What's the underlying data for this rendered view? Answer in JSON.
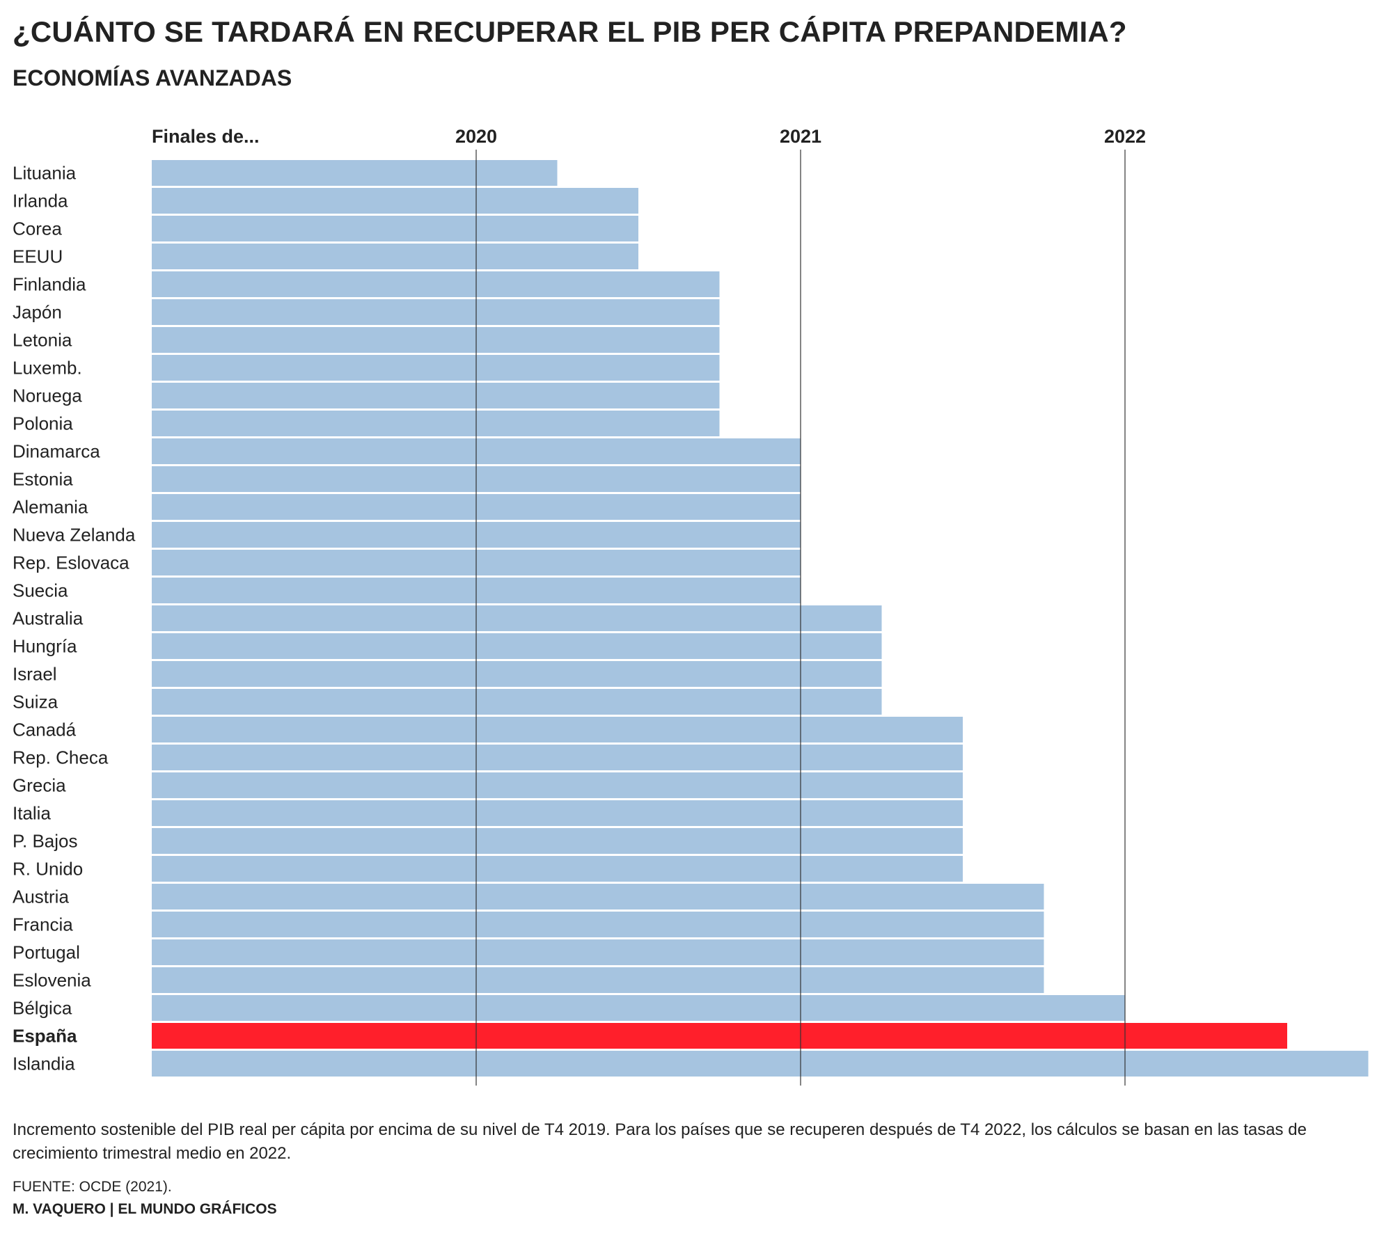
{
  "title": "¿CUÁNTO SE TARDARÁ EN RECUPERAR EL PIB PER CÁPITA PREPANDEMIA?",
  "subtitle": "ECONOMÍAS AVANZADAS",
  "note": "Incremento sostenible del PIB real per cápita por encima de su nivel de T4 2019. Para los países que se recuperen después de T4 2022, los cálculos se basan en las tasas de crecimiento trimestral medio en 2022.",
  "source": "FUENTE: OCDE (2021).",
  "credit": "M. VAQUERO | EL MUNDO GRÁFICOS",
  "colors": {
    "bar": "#a6c4e0",
    "highlight": "#ff1f2b",
    "axis_line": "#333333",
    "text": "#222222"
  },
  "chart_data": {
    "type": "bar",
    "orientation": "horizontal",
    "axis_header": "Finales de...",
    "x_ticks": [
      {
        "label": "2020",
        "value": 2020.0
      },
      {
        "label": "2021",
        "value": 2021.0
      },
      {
        "label": "2022",
        "value": 2022.0
      }
    ],
    "xlim": [
      2019.0,
      2022.75
    ],
    "grid": "vertical lines at tick years",
    "highlight_category": "España",
    "categories": [
      "Lituania",
      "Irlanda",
      "Corea",
      "EEUU",
      "Finlandia",
      "Japón",
      "Letonia",
      "Luxemb.",
      "Noruega",
      "Polonia",
      "Dinamarca",
      "Estonia",
      "Alemania",
      "Nueva Zelanda",
      "Rep. Eslovaca",
      "Suecia",
      "Australia",
      "Hungría",
      "Israel",
      "Suiza",
      "Canadá",
      "Rep. Checa",
      "Grecia",
      "Italia",
      "P. Bajos",
      "R. Unido",
      "Austria",
      "Francia",
      "Portugal",
      "Eslovenia",
      "Bélgica",
      "España",
      "Islandia"
    ],
    "values": [
      2020.25,
      2020.5,
      2020.5,
      2020.5,
      2020.75,
      2020.75,
      2020.75,
      2020.75,
      2020.75,
      2020.75,
      2021.0,
      2021.0,
      2021.0,
      2021.0,
      2021.0,
      2021.0,
      2021.25,
      2021.25,
      2021.25,
      2021.25,
      2021.5,
      2021.5,
      2021.5,
      2021.5,
      2021.5,
      2021.5,
      2021.75,
      2021.75,
      2021.75,
      2021.75,
      2022.0,
      2022.5,
      2022.75
    ]
  }
}
